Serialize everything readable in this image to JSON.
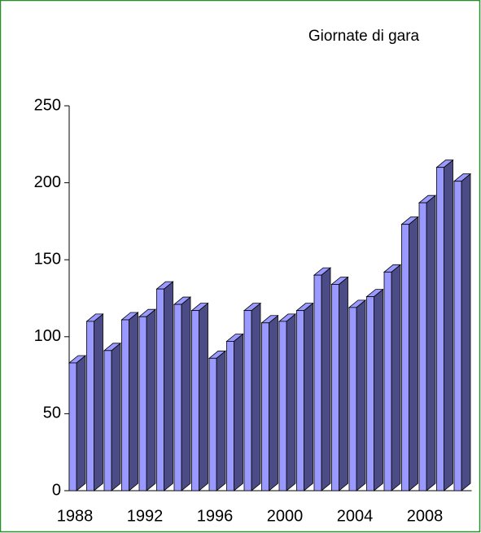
{
  "chart_data": {
    "type": "bar3d",
    "title": "Giornate di gara",
    "categories": [
      "1988",
      null,
      null,
      null,
      "1992",
      null,
      null,
      null,
      "1996",
      null,
      null,
      null,
      "2000",
      null,
      null,
      null,
      "2004",
      null,
      null,
      null,
      "2008",
      null,
      null
    ],
    "values": [
      83,
      110,
      91,
      111,
      113,
      131,
      121,
      117,
      86,
      97,
      117,
      109,
      110,
      117,
      140,
      134,
      119,
      126,
      142,
      173,
      187,
      210,
      201
    ],
    "color": "#9999ff",
    "side_color": "#4b4b85",
    "ylim": [
      0,
      250
    ],
    "yticks": [
      0,
      50,
      100,
      150,
      200,
      250
    ]
  }
}
